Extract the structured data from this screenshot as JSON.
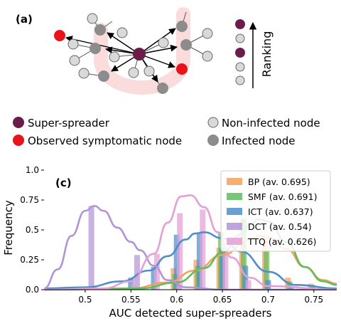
{
  "panel_a": {
    "label": "(a)",
    "ranking_label": "Ranking",
    "legend": [
      {
        "text": "Super-spreader",
        "color": "#6b1d4a"
      },
      {
        "text": "Non-infected node",
        "color": "#d9d9d9"
      },
      {
        "text": "Observed symptomatic node",
        "color": "#e8131b"
      },
      {
        "text": "Infected node",
        "color": "#8c8c8c"
      }
    ]
  },
  "panel_c": {
    "label": "(c)"
  },
  "chart_data": {
    "type": "bar",
    "subtype": "histogram with KDE curves",
    "xlabel": "AUC detected super-spreaders",
    "ylabel": "Frequency",
    "xlim": [
      0.455,
      0.775
    ],
    "ylim": [
      0,
      1.0
    ],
    "xticks": [
      "0.5",
      "0.55",
      "0.6",
      "0.65",
      "0.7",
      "0.75"
    ],
    "yticks": [
      "0.0",
      "0.25",
      "0.5",
      "0.75",
      "1.0"
    ],
    "legend_position": "upper right",
    "series": [
      {
        "name": "BP (av. 0.695)",
        "color": "#f5a05a",
        "bars": [
          [
            0.6,
            0.18
          ],
          [
            0.625,
            0.25
          ],
          [
            0.65,
            0.35
          ],
          [
            0.675,
            0.58
          ],
          [
            0.7,
            0.45
          ],
          [
            0.725,
            0.1
          ],
          [
            0.75,
            0.05
          ]
        ],
        "kde": [
          [
            0.455,
            0
          ],
          [
            0.55,
            0.01
          ],
          [
            0.59,
            0.06
          ],
          [
            0.62,
            0.16
          ],
          [
            0.65,
            0.29
          ],
          [
            0.68,
            0.42
          ],
          [
            0.69,
            0.45
          ],
          [
            0.7,
            0.44
          ],
          [
            0.72,
            0.34
          ],
          [
            0.74,
            0.19
          ],
          [
            0.76,
            0.08
          ],
          [
            0.775,
            0.05
          ]
        ]
      },
      {
        "name": "SMF (av. 0.691)",
        "color": "#5ebe5e",
        "bars": [
          [
            0.6,
            0.13
          ],
          [
            0.625,
            0.2
          ],
          [
            0.65,
            0.48
          ],
          [
            0.675,
            0.6
          ],
          [
            0.7,
            0.33
          ],
          [
            0.725,
            0.07
          ],
          [
            0.75,
            0.04
          ]
        ],
        "kde": [
          [
            0.455,
            0
          ],
          [
            0.56,
            0.01
          ],
          [
            0.6,
            0.06
          ],
          [
            0.63,
            0.18
          ],
          [
            0.65,
            0.31
          ],
          [
            0.67,
            0.46
          ],
          [
            0.68,
            0.54
          ],
          [
            0.69,
            0.59
          ],
          [
            0.7,
            0.57
          ],
          [
            0.72,
            0.4
          ],
          [
            0.74,
            0.19
          ],
          [
            0.76,
            0.07
          ],
          [
            0.775,
            0.04
          ]
        ]
      },
      {
        "name": "ICT (av. 0.637)",
        "color": "#4f8ecb",
        "bars": [
          [
            0.55,
            0.1
          ],
          [
            0.575,
            0.19
          ],
          [
            0.6,
            0.46
          ],
          [
            0.625,
            0.48
          ],
          [
            0.65,
            0.35
          ],
          [
            0.675,
            0.2
          ],
          [
            0.7,
            0.08
          ],
          [
            0.725,
            0.03
          ]
        ],
        "kde": [
          [
            0.455,
            0.01
          ],
          [
            0.5,
            0.02
          ],
          [
            0.54,
            0.07
          ],
          [
            0.57,
            0.16
          ],
          [
            0.59,
            0.28
          ],
          [
            0.61,
            0.42
          ],
          [
            0.62,
            0.47
          ],
          [
            0.63,
            0.48
          ],
          [
            0.65,
            0.43
          ],
          [
            0.67,
            0.32
          ],
          [
            0.7,
            0.15
          ],
          [
            0.73,
            0.04
          ],
          [
            0.775,
            0.01
          ]
        ]
      },
      {
        "name": "DCT (av. 0.54)",
        "color": "#b294d6",
        "bars": [
          [
            0.505,
            0.7
          ],
          [
            0.555,
            0.29
          ],
          [
            0.6,
            0.03
          ]
        ],
        "kde": [
          [
            0.455,
            0.01
          ],
          [
            0.47,
            0.17
          ],
          [
            0.485,
            0.45
          ],
          [
            0.5,
            0.66
          ],
          [
            0.51,
            0.7
          ],
          [
            0.52,
            0.66
          ],
          [
            0.535,
            0.52
          ],
          [
            0.55,
            0.4
          ],
          [
            0.56,
            0.33
          ],
          [
            0.575,
            0.2
          ],
          [
            0.59,
            0.08
          ],
          [
            0.61,
            0.02
          ],
          [
            0.65,
            0
          ],
          [
            0.775,
            0
          ]
        ]
      },
      {
        "name": "TTQ (av. 0.626)",
        "color": "#e59fd6",
        "bars": [
          [
            0.55,
            0.05
          ],
          [
            0.575,
            0.3
          ],
          [
            0.6,
            0.64
          ],
          [
            0.625,
            0.67
          ],
          [
            0.65,
            0.35
          ],
          [
            0.675,
            0.08
          ]
        ],
        "kde": [
          [
            0.455,
            0
          ],
          [
            0.52,
            0.01
          ],
          [
            0.55,
            0.07
          ],
          [
            0.575,
            0.3
          ],
          [
            0.59,
            0.56
          ],
          [
            0.605,
            0.78
          ],
          [
            0.615,
            0.79
          ],
          [
            0.63,
            0.69
          ],
          [
            0.645,
            0.48
          ],
          [
            0.66,
            0.27
          ],
          [
            0.68,
            0.1
          ],
          [
            0.7,
            0.03
          ],
          [
            0.775,
            0
          ]
        ]
      }
    ]
  }
}
